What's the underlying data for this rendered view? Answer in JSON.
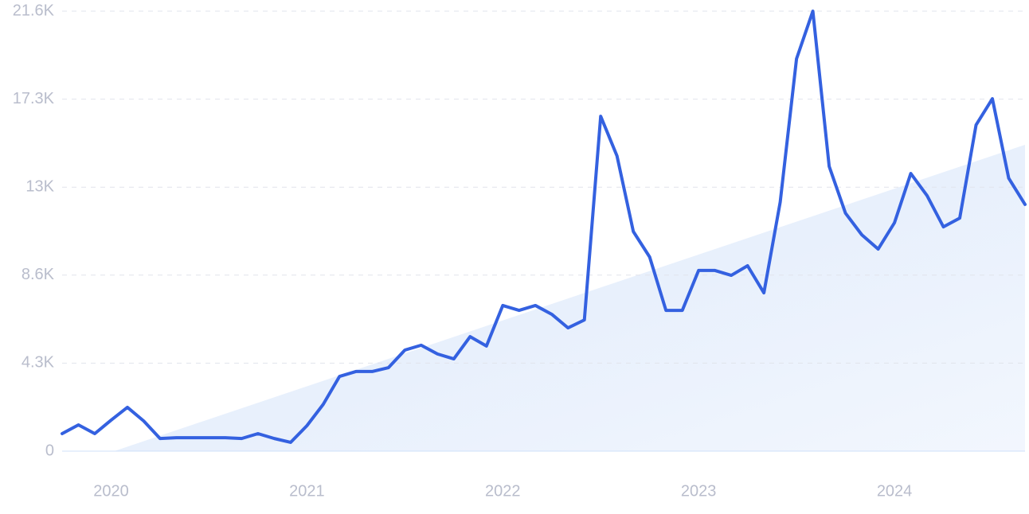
{
  "chart_data": {
    "type": "line",
    "categories": [
      null,
      null,
      null,
      "2020",
      null,
      null,
      null,
      null,
      null,
      null,
      null,
      null,
      null,
      null,
      null,
      "2021",
      null,
      null,
      null,
      null,
      null,
      null,
      null,
      null,
      null,
      null,
      null,
      "2022",
      null,
      null,
      null,
      null,
      null,
      null,
      null,
      null,
      null,
      null,
      null,
      "2023",
      null,
      null,
      null,
      null,
      null,
      null,
      null,
      null,
      null,
      null,
      null,
      "2024",
      null,
      null,
      null,
      null,
      null,
      null,
      null,
      null
    ],
    "values": [
      860,
      1290,
      860,
      1520,
      2150,
      1480,
      620,
      660,
      660,
      660,
      660,
      620,
      860,
      620,
      430,
      1250,
      2300,
      3670,
      3910,
      3910,
      4100,
      4960,
      5200,
      4770,
      4530,
      5620,
      5160,
      7150,
      6910,
      7150,
      6720,
      6050,
      6440,
      16440,
      14490,
      10780,
      9530,
      6910,
      6910,
      8870,
      8870,
      8630,
      9100,
      7770,
      12230,
      19260,
      21600,
      13980,
      11680,
      10620,
      9920,
      11210,
      13630,
      12540,
      11010,
      11440,
      16010,
      17300,
      13400,
      12110
    ],
    "color": "#3461e0",
    "trend_values": [
      -860,
      15040
    ],
    "trend_color": "#dce8fb",
    "ylim": [
      0,
      21600
    ],
    "yticks": [
      0,
      {
        "value": 4320,
        "label": "4.3K"
      },
      {
        "value": 8640,
        "label": "8.6K"
      },
      {
        "value": 12960,
        "label": "13K"
      },
      {
        "value": 17280,
        "label": "17.3K"
      },
      {
        "value": 21600,
        "label": "21.6K"
      }
    ],
    "grid": true
  }
}
